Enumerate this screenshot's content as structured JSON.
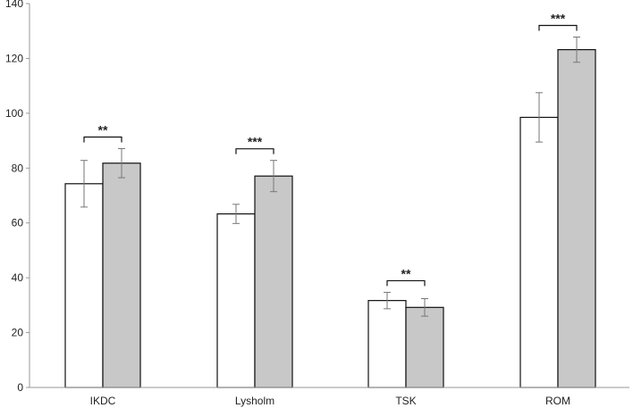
{
  "chart_data": {
    "type": "bar",
    "categories": [
      "IKDC",
      "Lysholm",
      "TSK",
      "ROM"
    ],
    "series": [
      {
        "values": [
          74.3,
          63.3,
          31.7,
          98.5
        ],
        "errors": [
          8.5,
          3.5,
          3.0,
          9.0
        ],
        "color": "#ffffff"
      },
      {
        "values": [
          81.8,
          77.1,
          29.2,
          123.2
        ],
        "errors": [
          5.3,
          5.7,
          3.2,
          4.6
        ],
        "color": "#c8c8c8"
      }
    ],
    "significance": [
      "**",
      "***",
      "**",
      "***"
    ],
    "ylim": [
      0,
      140
    ],
    "yticks": [
      0,
      20,
      40,
      60,
      80,
      100,
      120,
      140
    ],
    "grid": false,
    "xlabel": "",
    "ylabel": ""
  }
}
